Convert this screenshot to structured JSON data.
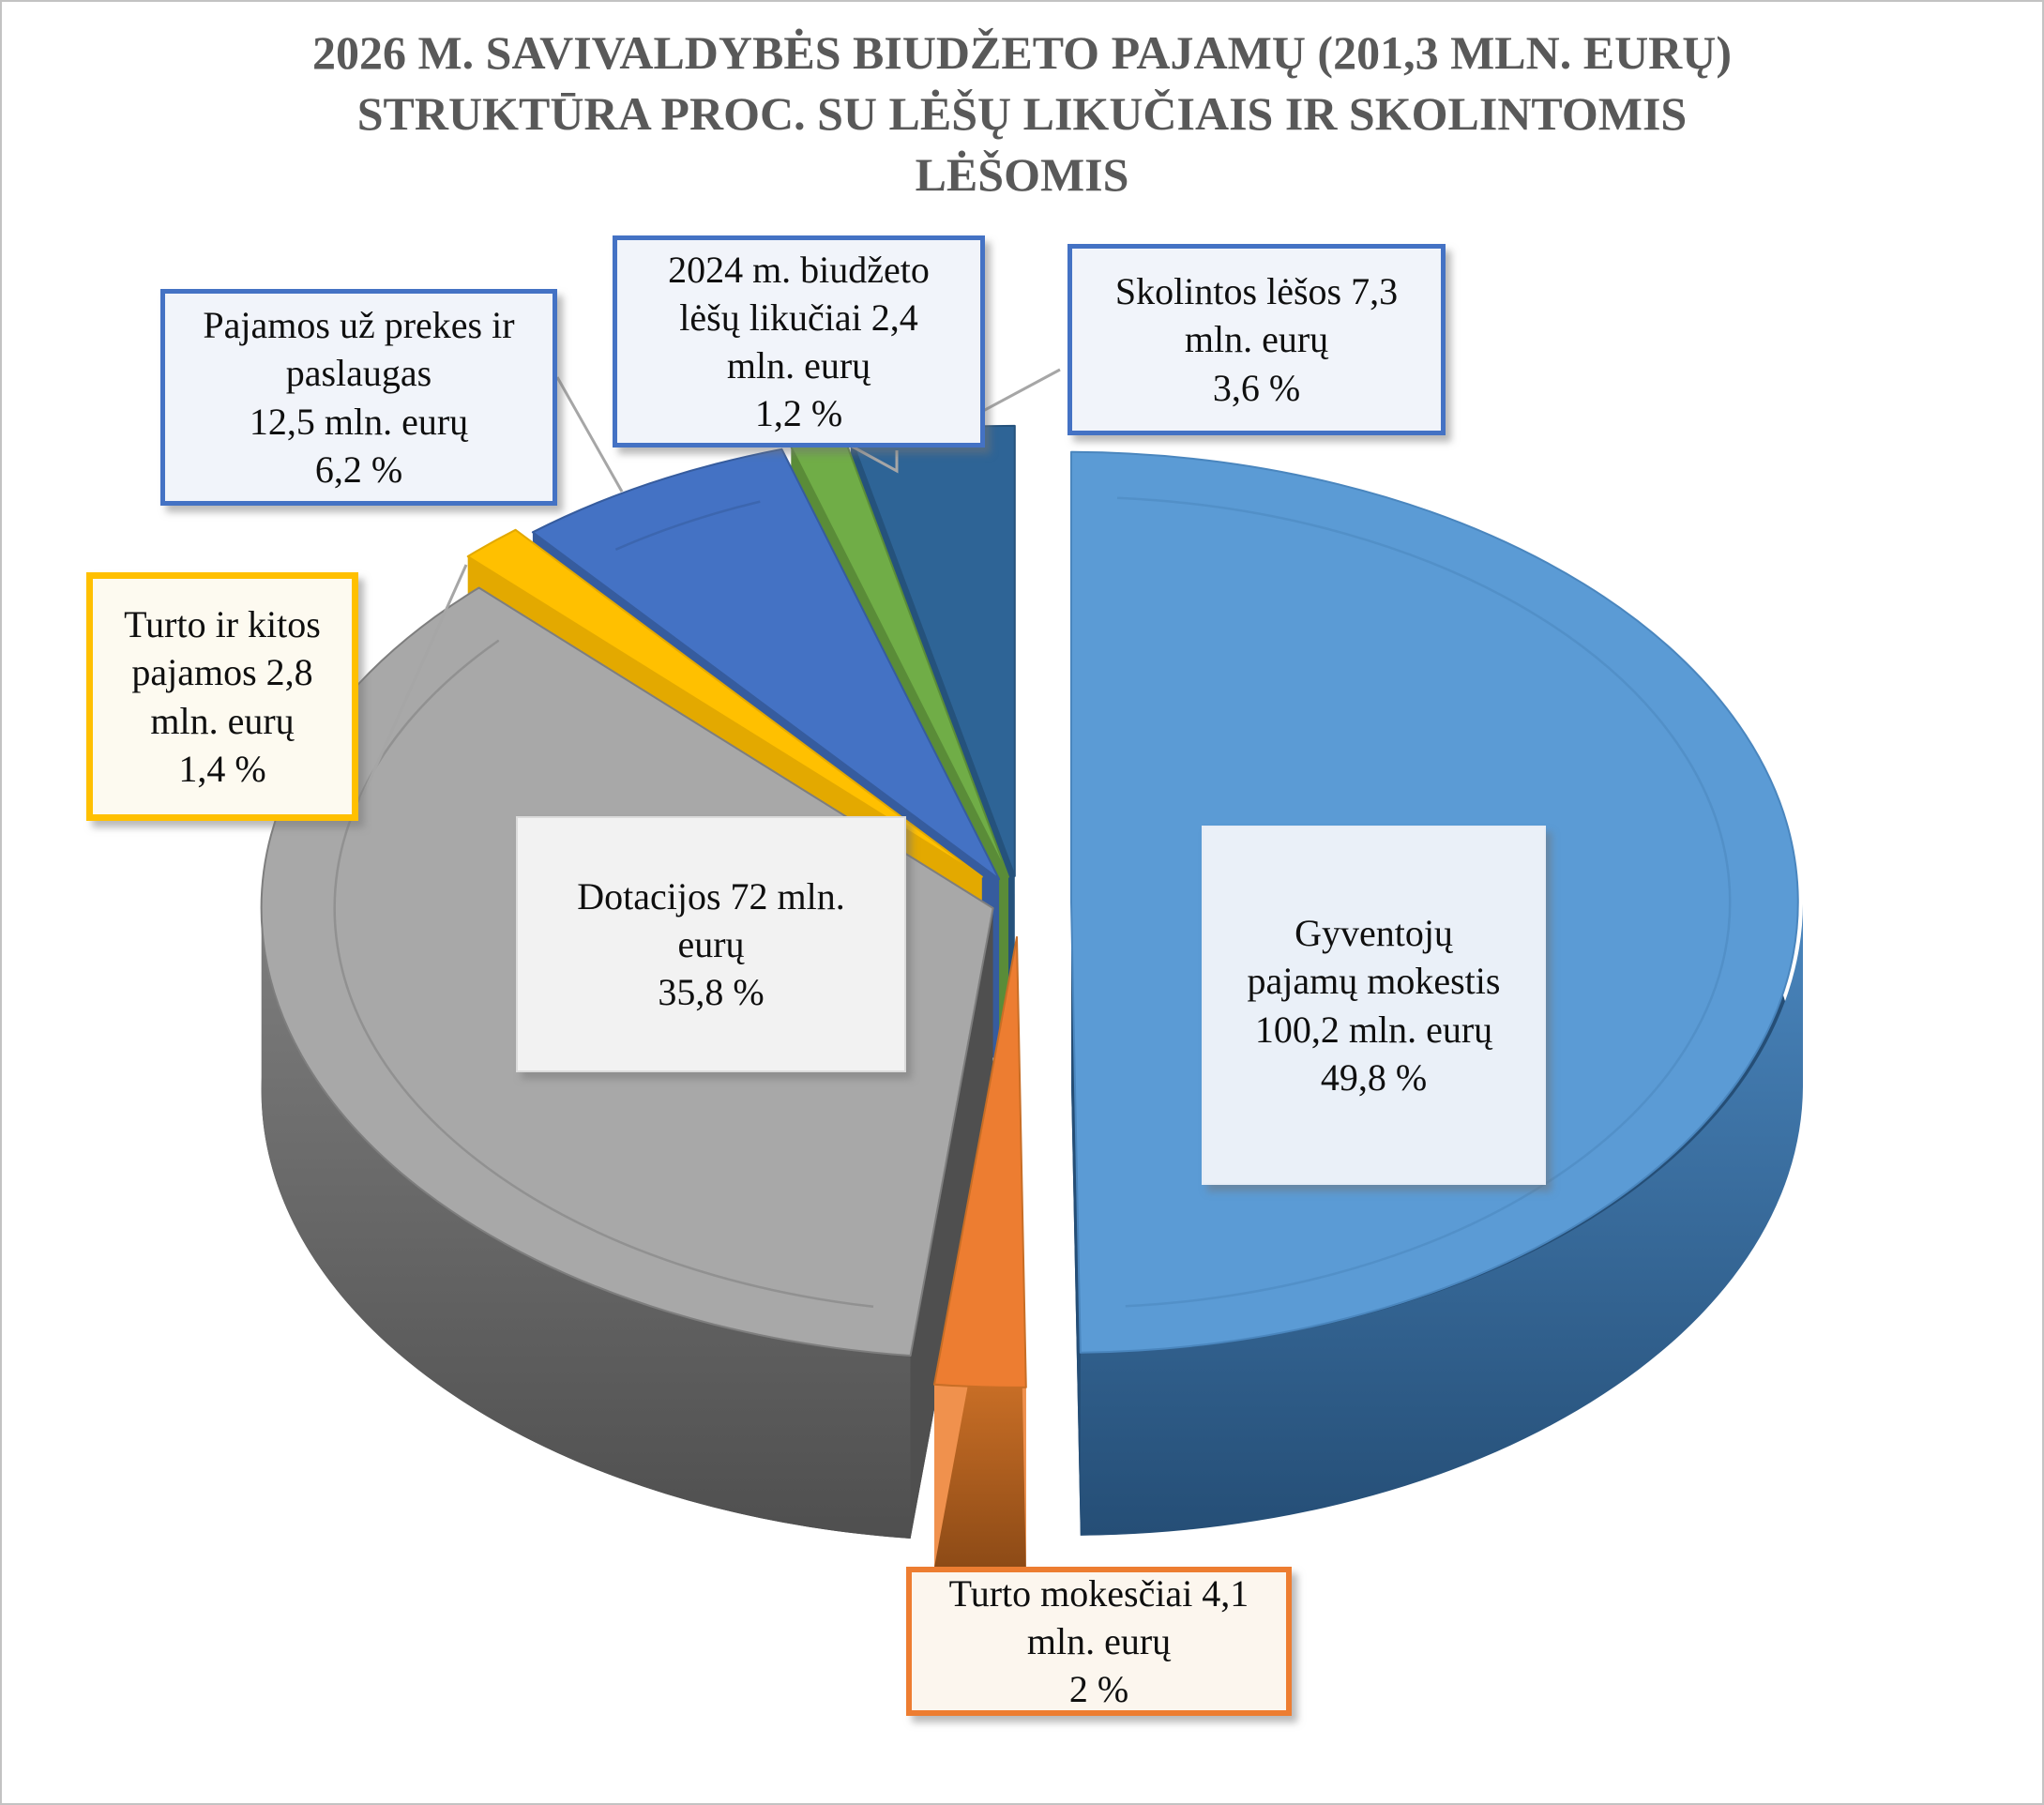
{
  "title": {
    "lines": [
      "2026 M. SAVIVALDYBĖS BIUDŽETO PAJAMŲ (201,3  MLN. EURŲ)",
      "STRUKTŪRA PROC. SU  LĖŠŲ LIKUČIAIS IR SKOLINTOMIS",
      "LĖŠOMIS"
    ],
    "color": "#595959"
  },
  "chart_data": {
    "type": "pie",
    "style": "3d-exploded",
    "title": "2026 m. savivaldybės biudžeto pajamų (201,3 mln. eurų) struktūra proc. su lėšų likučiais ir skolintomis lėšomis",
    "total_label": "201,3 mln. eurų",
    "unit": "mln. eurų",
    "start_angle_deg": -90,
    "direction": "clockwise",
    "legend_position": "callouts",
    "slices": [
      {
        "name": "Gyventojų pajamų mokestis",
        "value_mln_eur": 100.2,
        "percent": 49.8,
        "color": "#5B9BD5",
        "side": "#4A86BE",
        "dark": "#254E76",
        "explode": 55
      },
      {
        "name": "Turto mokesčiai",
        "value_mln_eur": 4.1,
        "percent": 2.0,
        "color": "#ED7D31",
        "side": "#C86E26",
        "dark": "#8C4A16",
        "face": "#F0914D",
        "explode": 60
      },
      {
        "name": "Dotacijos",
        "value_mln_eur": 72,
        "percent": 35.8,
        "color": "#A8A8A8",
        "side": "#7E7E7E",
        "dark": "#4F4F4F",
        "explode": 30
      },
      {
        "name": "Turto ir kitos pajamos",
        "value_mln_eur": 2.8,
        "percent": 1.4,
        "color": "#FFC000",
        "side": "#E3A900",
        "dark": "#A87E00",
        "explode": 60
      },
      {
        "name": "Pajamos už prekes ir paslaugas",
        "value_mln_eur": 12.5,
        "percent": 6.2,
        "color": "#4472C4",
        "side": "#365C9E",
        "dark": "#274577",
        "explode": 46
      },
      {
        "name": "2024 m. biudžeto lėšų likučiai",
        "value_mln_eur": 2.4,
        "percent": 1.2,
        "color": "#70AD47",
        "side": "#5A8C38",
        "dark": "#44692A",
        "explode": 46
      },
      {
        "name": "Skolintos lėšos",
        "value_mln_eur": 7.3,
        "percent": 3.6,
        "color": "#2E6496",
        "side": "#25527C",
        "dark": "#1B3D5D",
        "explode": 46
      }
    ]
  },
  "callouts": [
    {
      "text": "Pajamos už prekes ir\npaslaugas\n12,5 mln. eurų\n6,2 %",
      "border": "#4472C4",
      "fill": "#F1F4FA"
    },
    {
      "text": "2024 m. biudžeto\nlėšų likučiai 2,4\nmln.  eurų\n1,2 %",
      "border": "#4472C4",
      "fill": "#F1F4FA"
    },
    {
      "text": "Skolintos lėšos 7,3\nmln. eurų\n3,6 %",
      "border": "#4472C4",
      "fill": "#F1F4FA"
    },
    {
      "text": "Turto ir kitos\npajamos 2,8\nmln.  eurų\n1,4 %",
      "border": "#FFC000",
      "fill": "#FDFAF0"
    },
    {
      "text": "Dotacijos 72 mln.\neurų\n35,8 %",
      "border": "#DBDBDB",
      "fill": "#F2F2F2"
    },
    {
      "text": "Gyventojų\npajamų mokestis\n100,2 mln.  eurų\n49,8 %",
      "border": "#E7EDF6",
      "fill": "#EAF0F8"
    },
    {
      "text": "Turto mokesčiai 4,1\nmln. eurų\n2 %",
      "border": "#ED7D31",
      "fill": "#FCF6EE"
    }
  ]
}
